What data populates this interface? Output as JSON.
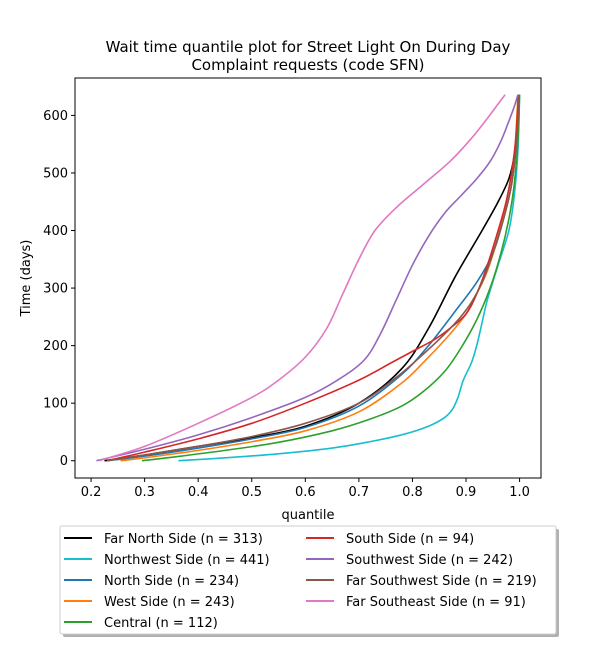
{
  "chart_data": {
    "type": "line",
    "title_line1": "Wait time quantile plot for Street Light On During Day",
    "title_line2": "Complaint  requests (code SFN)",
    "xlabel": "quantile",
    "ylabel": "Time (days)",
    "xlim": [
      0.17,
      1.04
    ],
    "ylim": [
      -30,
      665
    ],
    "xticks": [
      0.2,
      0.3,
      0.4,
      0.5,
      0.6,
      0.7,
      0.8,
      0.9,
      1.0
    ],
    "xtick_labels": [
      "0.2",
      "0.3",
      "0.4",
      "0.5",
      "0.6",
      "0.7",
      "0.8",
      "0.9",
      "1.0"
    ],
    "yticks": [
      0,
      100,
      200,
      300,
      400,
      500,
      600
    ],
    "ytick_labels": [
      "0",
      "100",
      "200",
      "300",
      "400",
      "500",
      "600"
    ],
    "grid": false,
    "legend_position": "below",
    "series": [
      {
        "name": "Far North Side (n = 313)",
        "color": "#000000",
        "x": [
          0.225,
          0.3,
          0.4,
          0.5,
          0.6,
          0.7,
          0.78,
          0.83,
          0.88,
          0.93,
          0.96,
          0.98,
          0.99,
          0.995,
          0.999
        ],
        "y": [
          0,
          10,
          25,
          40,
          60,
          100,
          160,
          230,
          320,
          400,
          450,
          490,
          530,
          580,
          636
        ]
      },
      {
        "name": "Northwest Side (n = 441)",
        "color": "#17becf",
        "x": [
          0.363,
          0.45,
          0.55,
          0.65,
          0.72,
          0.78,
          0.83,
          0.86,
          0.875,
          0.885,
          0.895,
          0.91,
          0.92,
          0.93,
          0.94,
          0.96,
          0.98,
          0.99,
          0.997,
          1.0
        ],
        "y": [
          0,
          5,
          12,
          22,
          33,
          45,
          60,
          75,
          90,
          110,
          140,
          170,
          200,
          240,
          280,
          340,
          400,
          460,
          540,
          636
        ]
      },
      {
        "name": "North Side (n = 234)",
        "color": "#1f77b4",
        "x": [
          0.23,
          0.3,
          0.4,
          0.5,
          0.6,
          0.7,
          0.78,
          0.83,
          0.88,
          0.92,
          0.95,
          0.97,
          0.985,
          0.995,
          0.999
        ],
        "y": [
          0,
          8,
          22,
          38,
          58,
          95,
          150,
          200,
          260,
          310,
          360,
          420,
          480,
          560,
          636
        ]
      },
      {
        "name": "West Side (n = 243)",
        "color": "#ff7f0e",
        "x": [
          0.255,
          0.3,
          0.4,
          0.5,
          0.6,
          0.7,
          0.78,
          0.83,
          0.87,
          0.9,
          0.92,
          0.94,
          0.96,
          0.975,
          0.99,
          0.997
        ],
        "y": [
          0,
          5,
          18,
          33,
          52,
          85,
          135,
          180,
          220,
          255,
          290,
          330,
          390,
          450,
          530,
          636
        ]
      },
      {
        "name": "Central (n = 112)",
        "color": "#2ca02c",
        "x": [
          0.295,
          0.35,
          0.45,
          0.55,
          0.65,
          0.72,
          0.78,
          0.82,
          0.86,
          0.89,
          0.92,
          0.945,
          0.965,
          0.98,
          0.99,
          0.997,
          1.0
        ],
        "y": [
          0,
          6,
          18,
          32,
          52,
          72,
          95,
          120,
          155,
          195,
          245,
          300,
          360,
          420,
          480,
          560,
          636
        ]
      },
      {
        "name": "South Side (n = 94)",
        "color": "#d62728",
        "x": [
          0.23,
          0.3,
          0.4,
          0.5,
          0.6,
          0.7,
          0.76,
          0.8,
          0.84,
          0.87,
          0.9,
          0.92,
          0.94,
          0.96,
          0.975,
          0.985,
          0.993,
          0.998
        ],
        "y": [
          0,
          15,
          38,
          65,
          100,
          140,
          170,
          190,
          210,
          230,
          255,
          290,
          340,
          400,
          450,
          500,
          560,
          636
        ]
      },
      {
        "name": "Southwest Side (n = 242)",
        "color": "#9467bd",
        "x": [
          0.21,
          0.3,
          0.4,
          0.5,
          0.6,
          0.66,
          0.71,
          0.74,
          0.77,
          0.8,
          0.83,
          0.86,
          0.89,
          0.92,
          0.945,
          0.965,
          0.98,
          0.99,
          0.997
        ],
        "y": [
          0,
          20,
          45,
          75,
          110,
          140,
          175,
          220,
          280,
          340,
          390,
          430,
          460,
          490,
          520,
          555,
          590,
          615,
          636
        ]
      },
      {
        "name": "Far Southwest Side (n = 219)",
        "color": "#8c564b",
        "x": [
          0.23,
          0.3,
          0.4,
          0.5,
          0.6,
          0.7,
          0.77,
          0.82,
          0.86,
          0.89,
          0.91,
          0.93,
          0.95,
          0.97,
          0.985,
          0.995,
          0.999
        ],
        "y": [
          0,
          10,
          25,
          42,
          65,
          100,
          145,
          185,
          220,
          250,
          275,
          310,
          360,
          420,
          480,
          560,
          636
        ]
      },
      {
        "name": "Far Southeast Side (n = 91)",
        "color": "#e377c2",
        "x": [
          0.215,
          0.3,
          0.4,
          0.5,
          0.55,
          0.6,
          0.64,
          0.67,
          0.7,
          0.73,
          0.77,
          0.82,
          0.87,
          0.91,
          0.94,
          0.96,
          0.973
        ],
        "y": [
          0,
          25,
          65,
          110,
          140,
          180,
          230,
          290,
          350,
          400,
          440,
          480,
          520,
          560,
          595,
          620,
          636
        ]
      }
    ]
  }
}
